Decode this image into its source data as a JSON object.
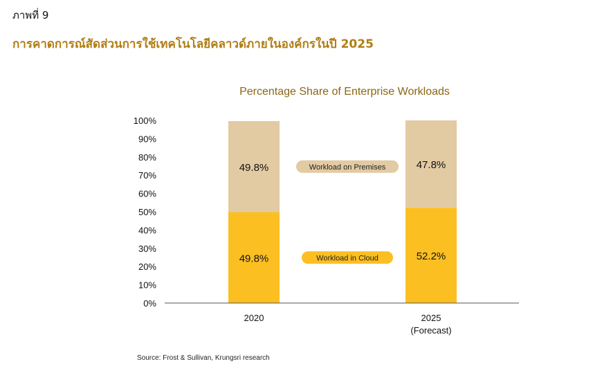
{
  "figure": {
    "label": "ภาพที่ 9",
    "title": "การคาดการณ์สัดส่วนการใช้เทคโนโลยีคลาวด์ภายในองค์กรในปี 2025"
  },
  "source": "Source: Frost & Sullivan, Krungsri research",
  "chart_data": {
    "type": "bar",
    "stacked": true,
    "title": "Percentage Share of Enterprise Workloads",
    "categories": [
      "2020",
      "2025"
    ],
    "category_sublabels": [
      "",
      "(Forecast)"
    ],
    "series": [
      {
        "name": "Workload in Cloud",
        "values": [
          49.8,
          52.2
        ],
        "labels": [
          "49.8%",
          "52.2%"
        ],
        "color": "#fcbf22"
      },
      {
        "name": "Workload on Premises",
        "values": [
          49.8,
          47.8
        ],
        "labels": [
          "49.8%",
          "47.8%"
        ],
        "color": "#e2caa3"
      }
    ],
    "yticks": [
      "0%",
      "10%",
      "20%",
      "30%",
      "40%",
      "50%",
      "60%",
      "70%",
      "80%",
      "90%",
      "100%"
    ],
    "ylim": [
      0,
      100
    ],
    "grid": false,
    "legend": "between-bars"
  }
}
